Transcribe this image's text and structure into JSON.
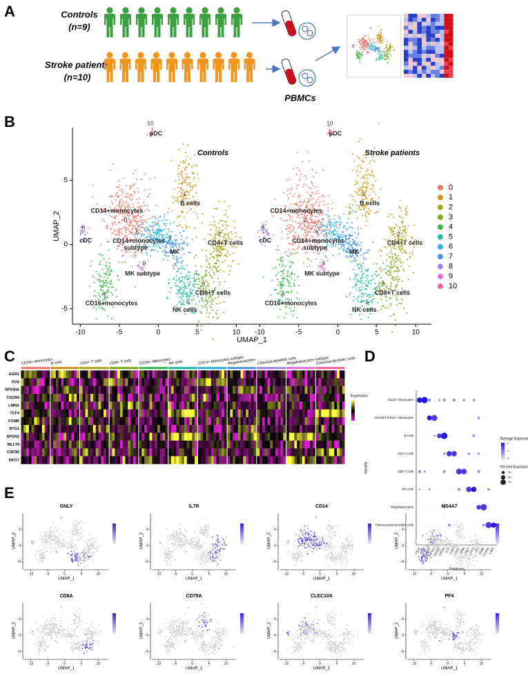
{
  "A": {
    "label": "A",
    "controls": "Controls",
    "controls_n": "(n=9)",
    "patients": "Stroke patients",
    "patients_n": "(n=10)",
    "pbmcs": "PBMCs"
  },
  "B": {
    "label": "B",
    "facets": [
      "Controls",
      "Stroke patients"
    ],
    "xlabel": "UMAP_1",
    "ylabel": "UMAP_2",
    "xlim": [
      -11,
      12
    ],
    "ylim": [
      -6.2,
      9.1
    ],
    "xticks": [
      -10,
      -5,
      0,
      5,
      10
    ],
    "yticks": [
      -5,
      0,
      5
    ],
    "clusters": [
      {
        "id": "0",
        "name": "CD14+monocytes",
        "color": "#f07a6e"
      },
      {
        "id": "1",
        "name": "B cells",
        "color": "#d4961a"
      },
      {
        "id": "2",
        "name": "CD4+T cells",
        "color": "#a9a61c"
      },
      {
        "id": "3",
        "name": "CD8+T cells",
        "color": "#76ab22"
      },
      {
        "id": "4",
        "name": "CD16+monocytes",
        "color": "#3db54a"
      },
      {
        "id": "5",
        "name": "NK cells",
        "color": "#22bd9a"
      },
      {
        "id": "6",
        "name": [
          "CD14+monocytes",
          "subtype"
        ],
        "color": "#30b4de"
      },
      {
        "id": "7",
        "name": "MK",
        "color": "#4f95e6"
      },
      {
        "id": "8",
        "name": "cDC",
        "color": "#a384e4"
      },
      {
        "id": "9",
        "name": "MK subtype",
        "color": "#e071dc"
      },
      {
        "id": "10",
        "name": "pDC",
        "color": "#f0649f"
      }
    ]
  },
  "C": {
    "label": "C",
    "legend": "Expression",
    "groups": [
      "CD14+ Monocytes",
      "B cells",
      "CD4+ T cells",
      "CD8+ T cells",
      "CD16+ Monocytes",
      "NK cells",
      "CD14+ Monocytes subtype",
      "Megakaryocytes",
      "Classical dendritic cells",
      "Megakaryocytes subtype",
      "Classical dendritic cells"
    ],
    "genes": [
      "EGR1",
      "FOS",
      "NFKBIA",
      "CXCR4",
      "LMNA",
      "TCF4",
      "FCMR",
      "BTG1",
      "SPON2",
      "MLLT4",
      "CSF3R",
      "NKG7"
    ]
  },
  "D": {
    "label": "D",
    "xlabel": "Features",
    "ylabel": "Identity",
    "avg_legend": "Average Expression",
    "pct_legend": "Percent Expressed",
    "avg_ticks": [
      2,
      1,
      0
    ],
    "pct_ticks": [
      25,
      50,
      75
    ],
    "identities": [
      "CD14+ Monocytes",
      "CD16/FCGR3A+ Monocytes",
      "B cells",
      "CD4 T cells",
      "CD8 T cells",
      "NK cells",
      "Megakaryocytes",
      "Plasmacytoid dendritic cells"
    ],
    "features": [
      "CD14",
      "LYZ",
      "FCGR3A",
      "MS4A7",
      "MS4A1",
      "CD79A",
      "IL7R",
      "CCR7",
      "CD8A",
      "CD8B",
      "GNLY",
      "NKG7",
      "PF4",
      "PPBP",
      "LILRA4",
      "IL3RA"
    ]
  },
  "E": {
    "label": "E",
    "genes": [
      "GNLY",
      "IL7R",
      "CD14",
      "MS4A7",
      "CD8A",
      "CD79A",
      "CLEC10A",
      "PF4"
    ],
    "xlabel": "UMAP_1",
    "ylabel": "UMAP_2",
    "xlim": [
      -12,
      13
    ],
    "ylim": [
      -7,
      10
    ],
    "xticks": [
      -10,
      -5,
      0,
      5,
      10
    ],
    "yticks": [
      -5,
      0,
      5
    ]
  }
}
